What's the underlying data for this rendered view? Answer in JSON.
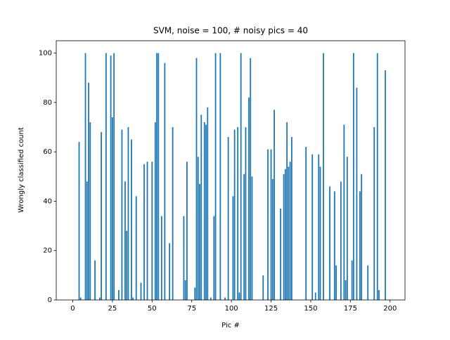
{
  "chart_data": {
    "type": "bar",
    "title": "SVM, noise = 100, # noisy pics = 40",
    "x_label": "Pic #",
    "y_label": "Wrongly classified count",
    "color": "#1f77b4",
    "x": [
      4,
      5,
      8,
      9,
      10,
      11,
      14,
      17,
      18,
      21,
      24,
      25,
      26,
      29,
      31,
      33,
      34,
      35,
      37,
      38,
      40,
      43,
      45,
      47,
      50,
      52,
      53,
      54,
      56,
      58,
      61,
      63,
      70,
      71,
      72,
      77,
      78,
      79,
      80,
      81,
      83,
      84,
      85,
      87,
      89,
      90,
      93,
      96,
      98,
      101,
      102,
      104,
      105,
      106,
      108,
      109,
      111,
      112,
      113,
      120,
      123,
      125,
      126,
      127,
      131,
      133,
      134,
      135,
      136,
      137,
      138,
      147,
      151,
      153,
      155,
      156,
      158,
      162,
      165,
      166,
      169,
      171,
      172,
      173,
      176,
      177,
      179,
      181,
      182,
      186,
      190,
      192,
      193,
      197
    ],
    "values": [
      64,
      1,
      100,
      48,
      88,
      72,
      16,
      1,
      68,
      100,
      99,
      74,
      100,
      4,
      69,
      48,
      28,
      70,
      65,
      1,
      42,
      7,
      55,
      56,
      56,
      72,
      100,
      100,
      34,
      96,
      23,
      70,
      34,
      8,
      56,
      5,
      98,
      58,
      47,
      75,
      72,
      71,
      78,
      1,
      34,
      100,
      100,
      1,
      66,
      42,
      69,
      70,
      3,
      100,
      51,
      70,
      82,
      98,
      50,
      10,
      61,
      61,
      49,
      77,
      37,
      51,
      53,
      72,
      54,
      56,
      66,
      62,
      59,
      3,
      59,
      54,
      100,
      46,
      44,
      14,
      48,
      71,
      8,
      58,
      16,
      100,
      86,
      44,
      51,
      14,
      70,
      100,
      4,
      93
    ],
    "xlim": [
      -10.4,
      209.4
    ],
    "xticks": [
      0,
      25,
      50,
      75,
      100,
      125,
      150,
      175,
      200
    ],
    "ylim": [
      0,
      105
    ],
    "yticks": [
      0,
      20,
      40,
      60,
      80,
      100
    ]
  }
}
